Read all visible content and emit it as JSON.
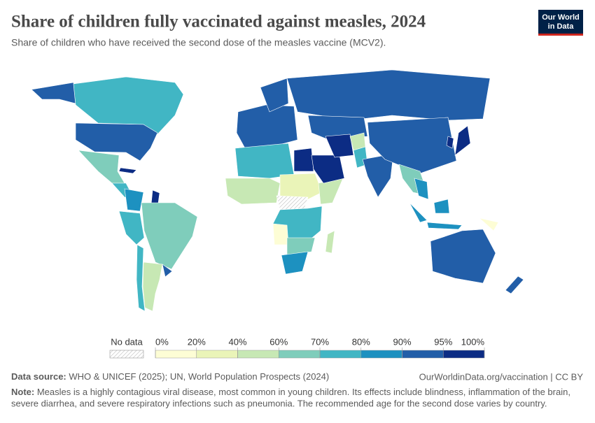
{
  "header": {
    "title": "Share of children fully vaccinated against measles, 2024",
    "subtitle": "Share of children who have received the second dose of the measles vaccine (MCV2).",
    "logo": [
      "Our World",
      "in Data"
    ]
  },
  "map": {
    "legend": {
      "no_data_label": "No data",
      "ticks": [
        {
          "value": 0,
          "label": "0%"
        },
        {
          "value": 20,
          "label": "20%"
        },
        {
          "value": 40,
          "label": "40%"
        },
        {
          "value": 60,
          "label": "60%"
        },
        {
          "value": 70,
          "label": "70%"
        },
        {
          "value": 80,
          "label": "80%"
        },
        {
          "value": 90,
          "label": "90%"
        },
        {
          "value": 95,
          "label": "95%"
        },
        {
          "value": 100,
          "label": "100%"
        }
      ],
      "colors": [
        "#fdfdd5",
        "#eaf4b8",
        "#c7e8b4",
        "#7fcdbb",
        "#41b6c4",
        "#1d91c0",
        "#225ea8",
        "#0c2c84"
      ]
    }
  },
  "footer": {
    "source_label": "Data source:",
    "source": "WHO & UNICEF (2025); UN, World Population Prospects (2024)",
    "url": "OurWorldinData.org/vaccination | CC BY",
    "note_label": "Note:",
    "note_lines": [
      "Measles is a highly contagious viral disease, most common in young children. Its effects include blindness, inflammation of the brain,",
      "severe diarrhea, and severe respiratory infections such as pneumonia. The recommended age for the second dose varies by country."
    ]
  }
}
